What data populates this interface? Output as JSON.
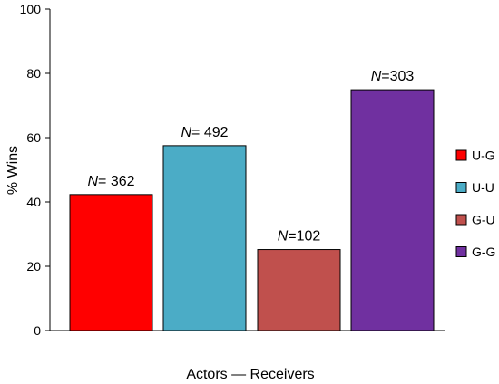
{
  "chart_data": {
    "type": "bar",
    "title": "",
    "xlabel": "Actors — Receivers",
    "ylabel": "% Wins",
    "ylim": [
      0,
      100
    ],
    "yticks": [
      "0",
      "20",
      "40",
      "60",
      "80",
      "100"
    ],
    "grid": false,
    "legend_position": "right",
    "categories": [
      "U-G",
      "U-U",
      "G-U",
      "G-G"
    ],
    "values": [
      42.3,
      57.5,
      25.2,
      74.9
    ],
    "n_prefix": "N",
    "n_labels": [
      "= 362",
      "= 492",
      "=102",
      "=303"
    ],
    "colors": [
      "#ff0000",
      "#4bacc6",
      "#c0504d",
      "#7030a0"
    ]
  }
}
